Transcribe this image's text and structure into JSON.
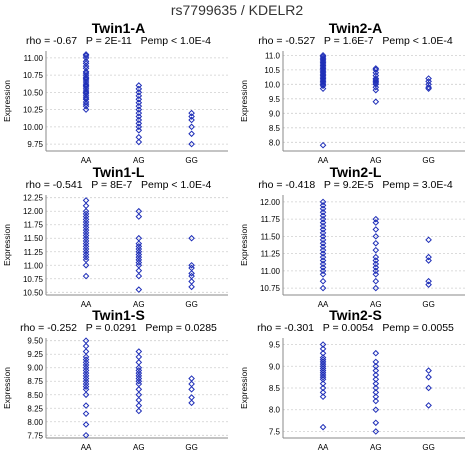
{
  "title": "rs7799635 / KDELR2",
  "colors": {
    "marker": "#1f2fb8",
    "grid": "#cfcfcf"
  },
  "chart_data": [
    {
      "type": "scatter",
      "title": "Twin1-A",
      "stats": "rho = -0.67   P = 2E-11   Pemp < 1.0E-4",
      "ylabel": "Expression",
      "categories": [
        "AA",
        "AG",
        "GG"
      ],
      "ylim": [
        9.65,
        11.1
      ],
      "yticks": [
        9.75,
        10.0,
        10.25,
        10.5,
        10.75,
        11.0
      ],
      "ytick_labels": [
        "9.75",
        "10.00",
        "10.25",
        "10.50",
        "10.75",
        "11.00"
      ],
      "grid": true,
      "points": {
        "AA": [
          10.25,
          10.3,
          10.33,
          10.36,
          10.4,
          10.42,
          10.45,
          10.48,
          10.5,
          10.52,
          10.55,
          10.58,
          10.6,
          10.62,
          10.65,
          10.68,
          10.7,
          10.72,
          10.75,
          10.78,
          10.8,
          10.85,
          10.88,
          10.92,
          10.95,
          11.0,
          11.03,
          11.05
        ],
        "AG": [
          9.78,
          9.85,
          9.95,
          10.0,
          10.05,
          10.1,
          10.15,
          10.2,
          10.25,
          10.3,
          10.35,
          10.4,
          10.45,
          10.5,
          10.55,
          10.6
        ],
        "GG": [
          9.75,
          9.9,
          10.0,
          10.1,
          10.15,
          10.2
        ]
      }
    },
    {
      "type": "scatter",
      "title": "Twin2-A",
      "stats": "rho = -0.527   P = 1.6E-7   Pemp < 1.0E-4",
      "ylabel": "Expression",
      "categories": [
        "AA",
        "AG",
        "GG"
      ],
      "ylim": [
        7.7,
        11.15
      ],
      "yticks": [
        8.0,
        8.5,
        9.0,
        9.5,
        10.0,
        10.5,
        11.0
      ],
      "ytick_labels": [
        "8.0",
        "8.5",
        "9.0",
        "9.5",
        "10.0",
        "10.5",
        "11.0"
      ],
      "grid": true,
      "points": {
        "AA": [
          7.9,
          9.85,
          9.95,
          10.0,
          10.05,
          10.1,
          10.15,
          10.2,
          10.25,
          10.3,
          10.35,
          10.4,
          10.45,
          10.5,
          10.55,
          10.6,
          10.65,
          10.7,
          10.75,
          10.8,
          10.85,
          10.9,
          10.95,
          11.0
        ],
        "AG": [
          9.4,
          9.8,
          9.9,
          10.0,
          10.05,
          10.1,
          10.15,
          10.2,
          10.3,
          10.4,
          10.5,
          10.55
        ],
        "GG": [
          9.85,
          9.9,
          10.0,
          10.1,
          10.2
        ]
      }
    },
    {
      "type": "scatter",
      "title": "Twin1-L",
      "stats": "rho = -0.541   P = 8E-7   Pemp < 1.0E-4",
      "ylabel": "Expression",
      "categories": [
        "AA",
        "AG",
        "GG"
      ],
      "ylim": [
        10.45,
        12.3
      ],
      "yticks": [
        10.5,
        10.75,
        11.0,
        11.25,
        11.5,
        11.75,
        12.0,
        12.25
      ],
      "ytick_labels": [
        "10.50",
        "10.75",
        "11.00",
        "11.25",
        "11.50",
        "11.75",
        "12.00",
        "12.25"
      ],
      "grid": true,
      "points": {
        "AA": [
          10.8,
          11.0,
          11.1,
          11.15,
          11.2,
          11.25,
          11.3,
          11.35,
          11.4,
          11.45,
          11.5,
          11.55,
          11.6,
          11.65,
          11.7,
          11.75,
          11.8,
          11.85,
          11.9,
          11.95,
          12.0,
          12.1,
          12.2
        ],
        "AG": [
          10.55,
          10.8,
          10.9,
          11.0,
          11.05,
          11.1,
          11.15,
          11.2,
          11.25,
          11.3,
          11.35,
          11.4,
          11.5,
          11.9,
          12.0
        ],
        "GG": [
          10.6,
          10.7,
          10.8,
          10.85,
          10.95,
          11.0,
          11.5
        ]
      }
    },
    {
      "type": "scatter",
      "title": "Twin2-L",
      "stats": "rho = -0.418   P = 9.2E-5   Pemp = 3.0E-4",
      "ylabel": "Expression",
      "categories": [
        "AA",
        "AG",
        "GG"
      ],
      "ylim": [
        10.65,
        12.1
      ],
      "yticks": [
        10.75,
        11.0,
        11.25,
        11.5,
        11.75,
        12.0
      ],
      "ytick_labels": [
        "10.75",
        "11.00",
        "11.25",
        "11.50",
        "11.75",
        "12.00"
      ],
      "grid": true,
      "points": {
        "AA": [
          10.75,
          10.85,
          10.95,
          11.0,
          11.05,
          11.1,
          11.15,
          11.2,
          11.25,
          11.3,
          11.35,
          11.4,
          11.45,
          11.5,
          11.55,
          11.6,
          11.65,
          11.7,
          11.75,
          11.8,
          11.85,
          11.9,
          11.95,
          12.0
        ],
        "AG": [
          10.75,
          10.85,
          10.95,
          11.0,
          11.05,
          11.1,
          11.15,
          11.2,
          11.3,
          11.4,
          11.5,
          11.6,
          11.7,
          11.75
        ],
        "GG": [
          10.8,
          10.85,
          11.15,
          11.2,
          11.45
        ]
      }
    },
    {
      "type": "scatter",
      "title": "Twin1-S",
      "stats": "rho = -0.252   P = 0.0291   Pemp = 0.0285",
      "ylabel": "Expression",
      "categories": [
        "AA",
        "AG",
        "GG"
      ],
      "ylim": [
        7.7,
        9.55
      ],
      "yticks": [
        7.75,
        8.0,
        8.25,
        8.5,
        8.75,
        9.0,
        9.25,
        9.5
      ],
      "ytick_labels": [
        "7.75",
        "8.00",
        "8.25",
        "8.50",
        "8.75",
        "9.00",
        "9.25",
        "9.50"
      ],
      "grid": true,
      "points": {
        "AA": [
          7.75,
          7.95,
          8.15,
          8.3,
          8.5,
          8.6,
          8.65,
          8.7,
          8.75,
          8.8,
          8.85,
          8.9,
          8.95,
          9.0,
          9.05,
          9.1,
          9.15,
          9.2,
          9.3,
          9.4,
          9.5
        ],
        "AG": [
          8.2,
          8.3,
          8.4,
          8.5,
          8.6,
          8.7,
          8.75,
          8.8,
          8.85,
          8.9,
          8.95,
          9.0,
          9.1,
          9.2,
          9.3
        ],
        "GG": [
          8.35,
          8.45,
          8.6,
          8.7,
          8.8
        ]
      }
    },
    {
      "type": "scatter",
      "title": "Twin2-S",
      "stats": "rho = -0.301   P = 0.0054   Pemp = 0.0055",
      "ylabel": "Expression",
      "categories": [
        "AA",
        "AG",
        "GG"
      ],
      "ylim": [
        7.35,
        9.65
      ],
      "yticks": [
        7.5,
        8.0,
        8.5,
        9.0,
        9.5
      ],
      "ytick_labels": [
        "7.5",
        "8.0",
        "8.5",
        "9.0",
        "9.5"
      ],
      "grid": true,
      "points": {
        "AA": [
          7.6,
          8.3,
          8.4,
          8.5,
          8.6,
          8.7,
          8.75,
          8.8,
          8.85,
          8.9,
          8.95,
          9.0,
          9.05,
          9.1,
          9.15,
          9.2,
          9.3,
          9.4,
          9.5
        ],
        "AG": [
          7.5,
          7.7,
          8.0,
          8.2,
          8.3,
          8.4,
          8.5,
          8.6,
          8.7,
          8.8,
          8.9,
          9.0,
          9.1,
          9.3
        ],
        "GG": [
          8.1,
          8.5,
          8.75,
          8.9
        ]
      }
    }
  ]
}
